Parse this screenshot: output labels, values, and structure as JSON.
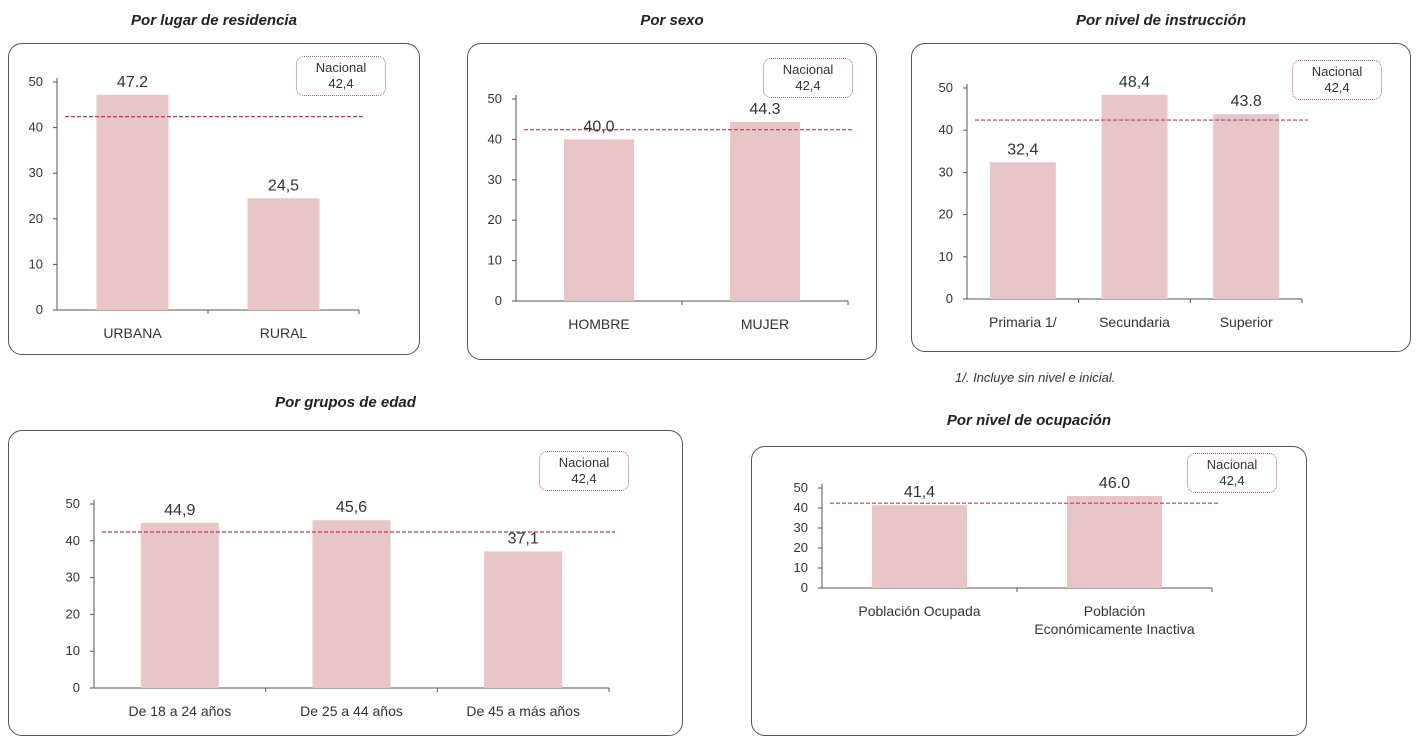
{
  "reference": {
    "label": "Nacional",
    "value_text": "42,4",
    "value": 42.4,
    "color": "#c0394f"
  },
  "bar_color": "#e8c5c7",
  "footnote": "1/. Incluye sin nivel e inicial.",
  "chart_data": [
    {
      "type": "bar",
      "title": "Por lugar de residencia",
      "categories": [
        "URBANA",
        "RURAL"
      ],
      "values": [
        47.2,
        24.5
      ],
      "value_labels": [
        "47.2",
        "24,5"
      ],
      "yticks": [
        0,
        10,
        20,
        30,
        40,
        50
      ],
      "ylim": [
        0,
        50
      ],
      "reference_line": 42.4,
      "reference_box": {
        "label": "Nacional",
        "value": "42,4"
      }
    },
    {
      "type": "bar",
      "title": "Por  sexo",
      "categories": [
        "HOMBRE",
        "MUJER"
      ],
      "values": [
        40.0,
        44.3
      ],
      "value_labels": [
        "40,0",
        "44.3"
      ],
      "yticks": [
        0,
        10,
        20,
        30,
        40,
        50
      ],
      "ylim": [
        0,
        50
      ],
      "reference_line": 42.4,
      "reference_box": {
        "label": "Nacional",
        "value": "42,4"
      }
    },
    {
      "type": "bar",
      "title": "Por nivel de instrucción",
      "categories": [
        "Primaria 1/",
        "Secundaria",
        "Superior"
      ],
      "values": [
        32.4,
        48.4,
        43.8
      ],
      "value_labels": [
        "32,4",
        "48,4",
        "43.8"
      ],
      "yticks": [
        0,
        10,
        20,
        30,
        40,
        50
      ],
      "ylim": [
        0,
        50
      ],
      "reference_line": 42.4,
      "reference_box": {
        "label": "Nacional",
        "value": "42,4"
      }
    },
    {
      "type": "bar",
      "title": "Por grupos de edad",
      "categories": [
        "De 18 a 24 años",
        "De 25 a 44 años",
        "De 45 a más años"
      ],
      "values": [
        44.9,
        45.6,
        37.1
      ],
      "value_labels": [
        "44,9",
        "45,6",
        "37,1"
      ],
      "yticks": [
        0,
        10,
        20,
        30,
        40,
        50
      ],
      "ylim": [
        0,
        50
      ],
      "reference_line": 42.4,
      "reference_box": {
        "label": "Nacional",
        "value": "42,4"
      }
    },
    {
      "type": "bar",
      "title": "Por nivel de ocupación",
      "categories": [
        "Población Ocupada",
        "Población Económicamente Inactiva"
      ],
      "category_lines": [
        [
          "Población Ocupada"
        ],
        [
          "Población",
          "Económicamente Inactiva"
        ]
      ],
      "values": [
        41.4,
        46.0
      ],
      "value_labels": [
        "41,4",
        "46.0"
      ],
      "yticks": [
        0,
        10,
        20,
        30,
        40,
        50
      ],
      "ylim": [
        0,
        50
      ],
      "reference_line": 42.4,
      "reference_box": {
        "label": "Nacional",
        "value": "42,4"
      }
    }
  ]
}
